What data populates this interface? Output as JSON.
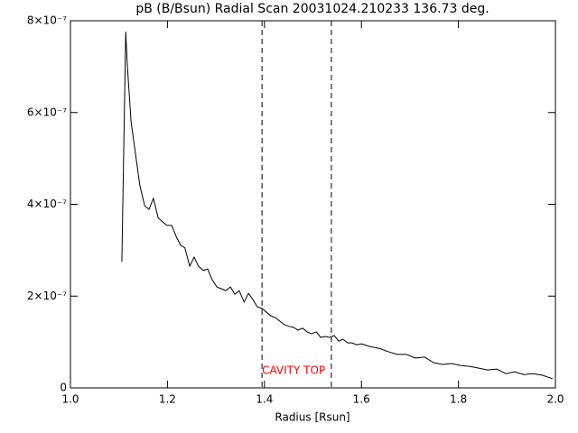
{
  "chart_data": {
    "type": "line",
    "title": "pB (B/Bsun) Radial Scan 20031024.210233 136.73 deg.",
    "x_label": "Radius [Rsun]",
    "color": "#000000",
    "xlim": [
      1.0,
      2.0
    ],
    "xticks": [
      {
        "value": 1.0,
        "label": "1.0"
      },
      1.2,
      1.4,
      1.6,
      1.8,
      {
        "value": 2.0,
        "label": "2.0"
      }
    ],
    "ylim": [
      0,
      8e-07
    ],
    "yticks": [
      0,
      {
        "value": 2e-07,
        "label": "2×10⁻⁷"
      },
      {
        "value": 4e-07,
        "label": "4×10⁻⁷"
      },
      {
        "value": 6e-07,
        "label": "6×10⁻⁷"
      },
      {
        "value": 8e-07,
        "label": "8×10⁻⁷"
      }
    ],
    "vlines": [
      1.395,
      1.538
    ],
    "annotation": {
      "text": "CAVITY TOP",
      "color": "#ff0000"
    },
    "x": [
      1.106,
      1.114,
      1.117,
      1.125,
      1.134,
      1.143,
      1.153,
      1.162,
      1.171,
      1.181,
      1.19,
      1.199,
      1.209,
      1.218,
      1.227,
      1.236,
      1.246,
      1.255,
      1.264,
      1.274,
      1.283,
      1.292,
      1.302,
      1.311,
      1.32,
      1.33,
      1.339,
      1.348,
      1.358,
      1.367,
      1.376,
      1.385,
      1.395,
      1.404,
      1.413,
      1.423,
      1.432,
      1.441,
      1.451,
      1.46,
      1.469,
      1.479,
      1.488,
      1.497,
      1.507,
      1.516,
      1.525,
      1.534,
      1.544,
      1.553,
      1.562,
      1.572,
      1.581,
      1.59,
      1.6,
      1.618,
      1.637,
      1.655,
      1.674,
      1.693,
      1.711,
      1.73,
      1.749,
      1.767,
      1.786,
      1.804,
      1.823,
      1.842,
      1.86,
      1.879,
      1.898,
      1.916,
      1.935,
      1.953,
      1.972,
      1.994
    ],
    "values": [
      2.75e-07,
      7.76e-07,
      7.08e-07,
      5.8e-07,
      5.11e-07,
      4.42e-07,
      3.97e-07,
      3.89e-07,
      4.13e-07,
      3.7e-07,
      3.62e-07,
      3.54e-07,
      3.54e-07,
      3.3e-07,
      3.11e-07,
      3.05e-07,
      2.65e-07,
      2.85e-07,
      2.65e-07,
      2.56e-07,
      2.59e-07,
      2.36e-07,
      2.2e-07,
      2.16e-07,
      2.12e-07,
      2.2e-07,
      2.04e-07,
      2.12e-07,
      1.87e-07,
      2.06e-07,
      1.93e-07,
      1.77e-07,
      1.73e-07,
      1.65e-07,
      1.57e-07,
      1.53e-07,
      1.45e-07,
      1.38e-07,
      1.34e-07,
      1.32e-07,
      1.26e-07,
      1.3e-07,
      1.22e-07,
      1.18e-07,
      1.22e-07,
      1.1e-07,
      1.12e-07,
      1.1e-07,
      1.14e-07,
      1.02e-07,
      1.06e-07,
      9.8e-08,
      9.8e-08,
      9.4e-08,
      9.6e-08,
      9e-08,
      8.6e-08,
      7.9e-08,
      7.3e-08,
      7.3e-08,
      6.5e-08,
      6.7e-08,
      5.5e-08,
      5.1e-08,
      5.3e-08,
      4.9e-08,
      4.7e-08,
      4.3e-08,
      3.9e-08,
      4.1e-08,
      3.1e-08,
      3.5e-08,
      2.9e-08,
      3.1e-08,
      2.8e-08,
      2e-08
    ]
  }
}
